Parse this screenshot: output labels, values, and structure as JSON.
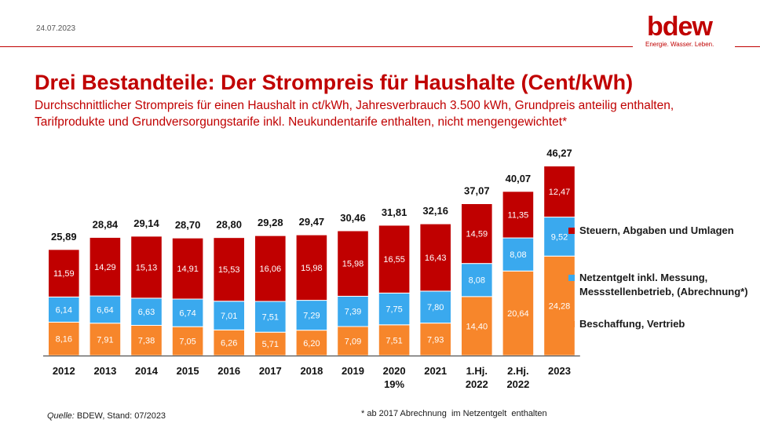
{
  "header": {
    "date": "24.07.2023"
  },
  "logo": {
    "word": "bdew",
    "tagline": "Energie. Wasser. Leben."
  },
  "title": "Drei Bestandteile: Der Strompreis für Haushalte (Cent/kWh)",
  "subtitle": "Durchschnittlicher Strompreis für einen Haushalt in ct/kWh, Jahresverbrauch 3.500 kWh, Grundpreis anteilig enthalten, Tarifprodukte und Grundversorgungstarife inkl. Neukundentarife enthalten, nicht mengengewichtet*",
  "source": {
    "label": "Quelle:",
    "text": "BDEW, Stand: 07/2023"
  },
  "footnote": "* ab 2017 Abrechnung  im Netzentgelt  enthalten",
  "chart_data": {
    "type": "bar",
    "stacked": true,
    "categories": [
      "2012",
      "2013",
      "2014",
      "2015",
      "2016",
      "2017",
      "2018",
      "2019",
      "2020\n19%",
      "2021",
      "1.Hj.\n2022",
      "2.Hj.\n2022",
      "2023"
    ],
    "series": [
      {
        "name": "Beschaffung, Vertrieb",
        "color": "#f7862b",
        "values": [
          8.16,
          7.91,
          7.38,
          7.05,
          6.26,
          5.71,
          6.2,
          7.09,
          7.51,
          7.93,
          14.4,
          20.64,
          24.28
        ],
        "labels": [
          "8,16",
          "7,91",
          "7,38",
          "7,05",
          "6,26",
          "5,71",
          "6,20",
          "7,09",
          "7,51",
          "7,93",
          "14,40",
          "20,64",
          "24,28"
        ]
      },
      {
        "name": "Netzentgelt inkl. Messung, Messstellenbetrieb, (Abrechnung*)",
        "color": "#3aa9ee",
        "values": [
          6.14,
          6.64,
          6.63,
          6.74,
          7.01,
          7.51,
          7.29,
          7.39,
          7.75,
          7.8,
          8.08,
          8.08,
          9.52
        ],
        "labels": [
          "6,14",
          "6,64",
          "6,63",
          "6,74",
          "7,01",
          "7,51",
          "7,29",
          "7,39",
          "7,75",
          "7,80",
          "8,08",
          "8,08",
          "9,52"
        ]
      },
      {
        "name": "Steuern, Abgaben und Umlagen",
        "color": "#c00000",
        "values": [
          11.59,
          14.29,
          15.13,
          14.91,
          15.53,
          16.06,
          15.98,
          15.98,
          16.55,
          16.43,
          14.59,
          11.35,
          12.47
        ],
        "labels": [
          "11,59",
          "14,29",
          "15,13",
          "14,91",
          "15,53",
          "16,06",
          "15,98",
          "15,98",
          "16,55",
          "16,43",
          "14,59",
          "11,35",
          "12,47"
        ]
      }
    ],
    "totals": [
      25.89,
      28.84,
      29.14,
      28.7,
      28.8,
      29.28,
      29.47,
      30.46,
      31.81,
      32.16,
      37.07,
      40.07,
      46.27
    ],
    "total_labels": [
      "25,89",
      "28,84",
      "29,14",
      "28,70",
      "28,80",
      "29,28",
      "29,47",
      "30,46",
      "31,81",
      "32,16",
      "37,07",
      "40,07",
      "46,27"
    ],
    "legend": [
      {
        "text": "Steuern, Abgaben und Umlagen",
        "color": "#c00000"
      },
      {
        "text": "Netzentgelt inkl. Messung, Messstellenbetrieb, (Abrechnung*)",
        "color": "#3aa9ee"
      },
      {
        "text": "Beschaffung, Vertrieb",
        "color": "#f7862b"
      }
    ],
    "legend_position": "right",
    "grid": false
  }
}
